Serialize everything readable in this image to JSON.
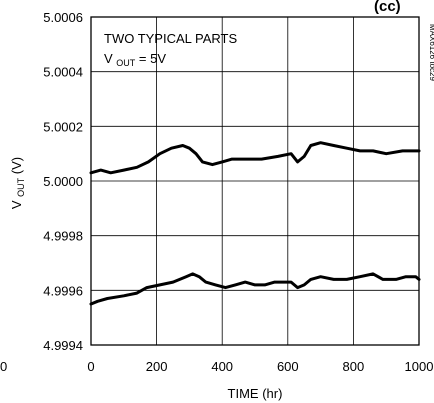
{
  "chart_data": {
    "type": "line",
    "title": "(cc)",
    "xlabel": "TIME (hr)",
    "ylabel_main": "V",
    "ylabel_sub": "OUT",
    "ylabel_unit": " (V)",
    "xlim": [
      0,
      1000
    ],
    "ylim": [
      4.9994,
      5.0006
    ],
    "x_ticks": [
      0,
      200,
      400,
      600,
      800,
      1000
    ],
    "x_tick_labels": [
      "0",
      "200",
      "400",
      "600",
      "800",
      "1000"
    ],
    "y_ticks": [
      4.9994,
      4.9996,
      4.9998,
      5.0,
      5.0002,
      5.0004,
      5.0006
    ],
    "y_tick_labels": [
      "4.9994",
      "4.9996",
      "4.9998",
      "5.0000",
      "5.0002",
      "5.0004",
      "5.0006"
    ],
    "grid": true,
    "annotation_line1": "TWO TYPICAL PARTS",
    "annotation_line2_main": "V",
    "annotation_line2_sub": "OUT",
    "annotation_line2_rest": " = 5V",
    "figure_id": "MAX6126 toc29",
    "left_edge_fragment": "0",
    "series": [
      {
        "x": [
          0,
          30,
          60,
          100,
          140,
          175,
          210,
          245,
          280,
          300,
          320,
          340,
          370,
          400,
          430,
          470,
          520,
          570,
          610,
          630,
          650,
          670,
          700,
          740,
          780,
          820,
          860,
          900,
          950,
          1000
        ],
        "values": [
          5.00003,
          5.00004,
          5.00003,
          5.00004,
          5.00005,
          5.00007,
          5.0001,
          5.00012,
          5.00013,
          5.00012,
          5.0001,
          5.00007,
          5.00006,
          5.00007,
          5.00008,
          5.00008,
          5.00008,
          5.00009,
          5.0001,
          5.00007,
          5.00009,
          5.00013,
          5.00014,
          5.00013,
          5.00012,
          5.00011,
          5.00011,
          5.0001,
          5.00011,
          5.00011
        ]
      },
      {
        "x": [
          0,
          20,
          50,
          100,
          140,
          170,
          210,
          250,
          290,
          310,
          330,
          350,
          380,
          410,
          440,
          470,
          500,
          530,
          560,
          590,
          610,
          630,
          650,
          670,
          700,
          740,
          780,
          820,
          860,
          890,
          930,
          960,
          990,
          1000
        ],
        "values": [
          4.99955,
          4.99956,
          4.99957,
          4.99958,
          4.99959,
          4.99961,
          4.99962,
          4.99963,
          4.99965,
          4.99966,
          4.99965,
          4.99963,
          4.99962,
          4.99961,
          4.99962,
          4.99963,
          4.99962,
          4.99962,
          4.99963,
          4.99963,
          4.99963,
          4.99961,
          4.99962,
          4.99964,
          4.99965,
          4.99964,
          4.99964,
          4.99965,
          4.99966,
          4.99964,
          4.99964,
          4.99965,
          4.99965,
          4.99964
        ]
      }
    ]
  }
}
